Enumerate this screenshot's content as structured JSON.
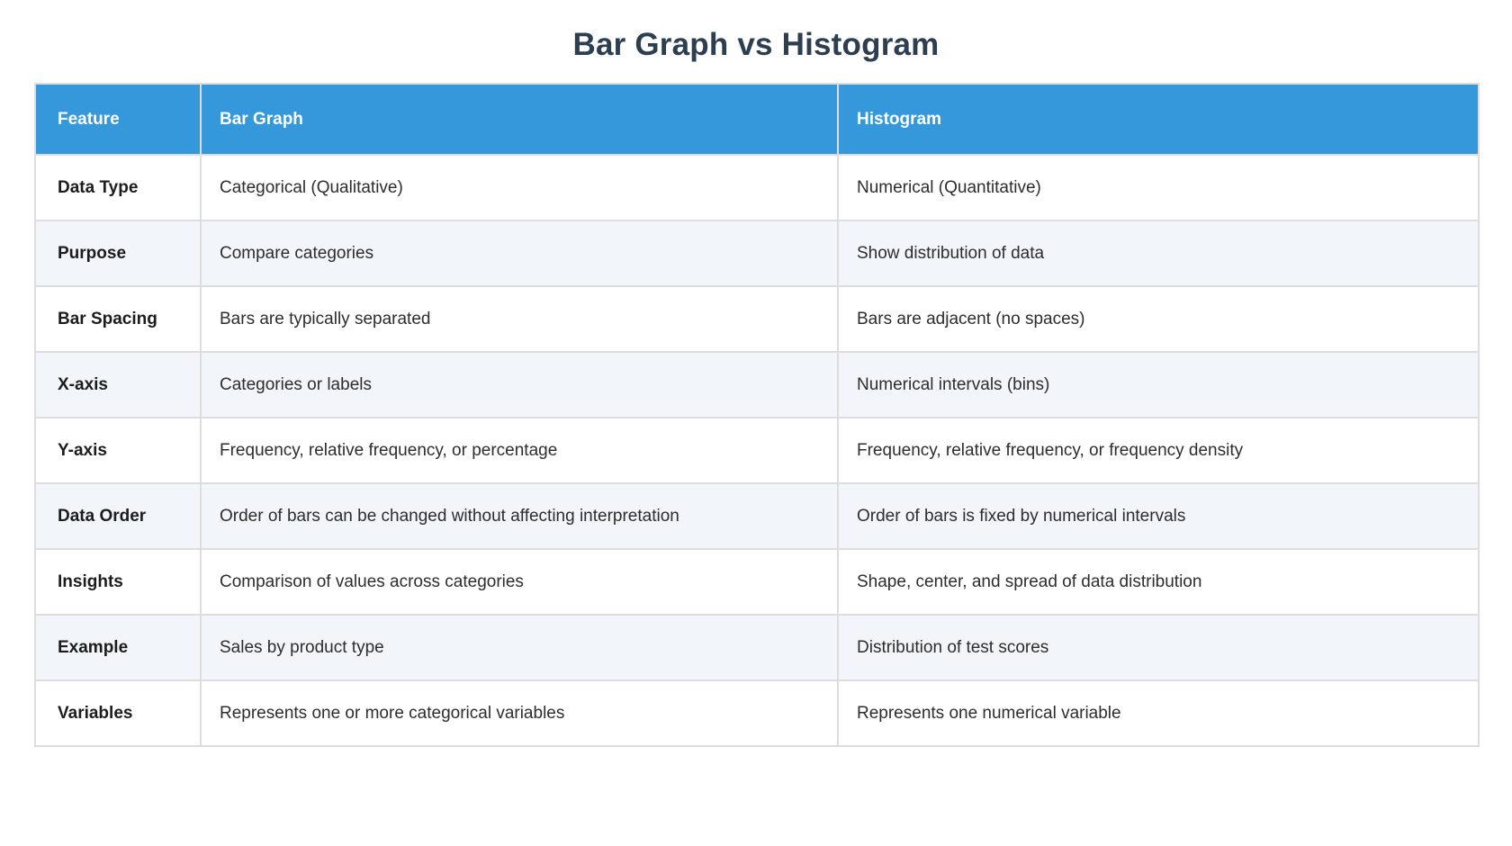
{
  "page": {
    "title": "Bar Graph vs Histogram"
  },
  "table": {
    "headers": [
      "Feature",
      "Bar Graph",
      "Histogram"
    ],
    "rows": [
      {
        "feature": "Data Type",
        "bar_graph": "Categorical (Qualitative)",
        "histogram": "Numerical (Quantitative)"
      },
      {
        "feature": "Purpose",
        "bar_graph": "Compare categories",
        "histogram": "Show distribution of data"
      },
      {
        "feature": "Bar Spacing",
        "bar_graph": "Bars are typically separated",
        "histogram": "Bars are adjacent (no spaces)"
      },
      {
        "feature": "X-axis",
        "bar_graph": "Categories or labels",
        "histogram": "Numerical intervals (bins)"
      },
      {
        "feature": "Y-axis",
        "bar_graph": "Frequency, relative frequency, or percentage",
        "histogram": "Frequency, relative frequency, or frequency density"
      },
      {
        "feature": "Data Order",
        "bar_graph": "Order of bars can be changed without affecting interpretation",
        "histogram": "Order of bars is fixed by numerical intervals"
      },
      {
        "feature": "Insights",
        "bar_graph": "Comparison of values across categories",
        "histogram": "Shape, center, and spread of data distribution"
      },
      {
        "feature": "Example",
        "bar_graph": "Sales by product type",
        "histogram": "Distribution of test scores"
      },
      {
        "feature": "Variables",
        "bar_graph": "Represents one or more categorical variables",
        "histogram": "Represents one numerical variable"
      }
    ]
  },
  "colors": {
    "header_background": "#3498db",
    "header_text": "#ffffff",
    "stripe_row_background": "#f2f5f9",
    "border": "#dddddd",
    "title_text": "#2c3e50",
    "body_text": "#2d2d2d"
  }
}
